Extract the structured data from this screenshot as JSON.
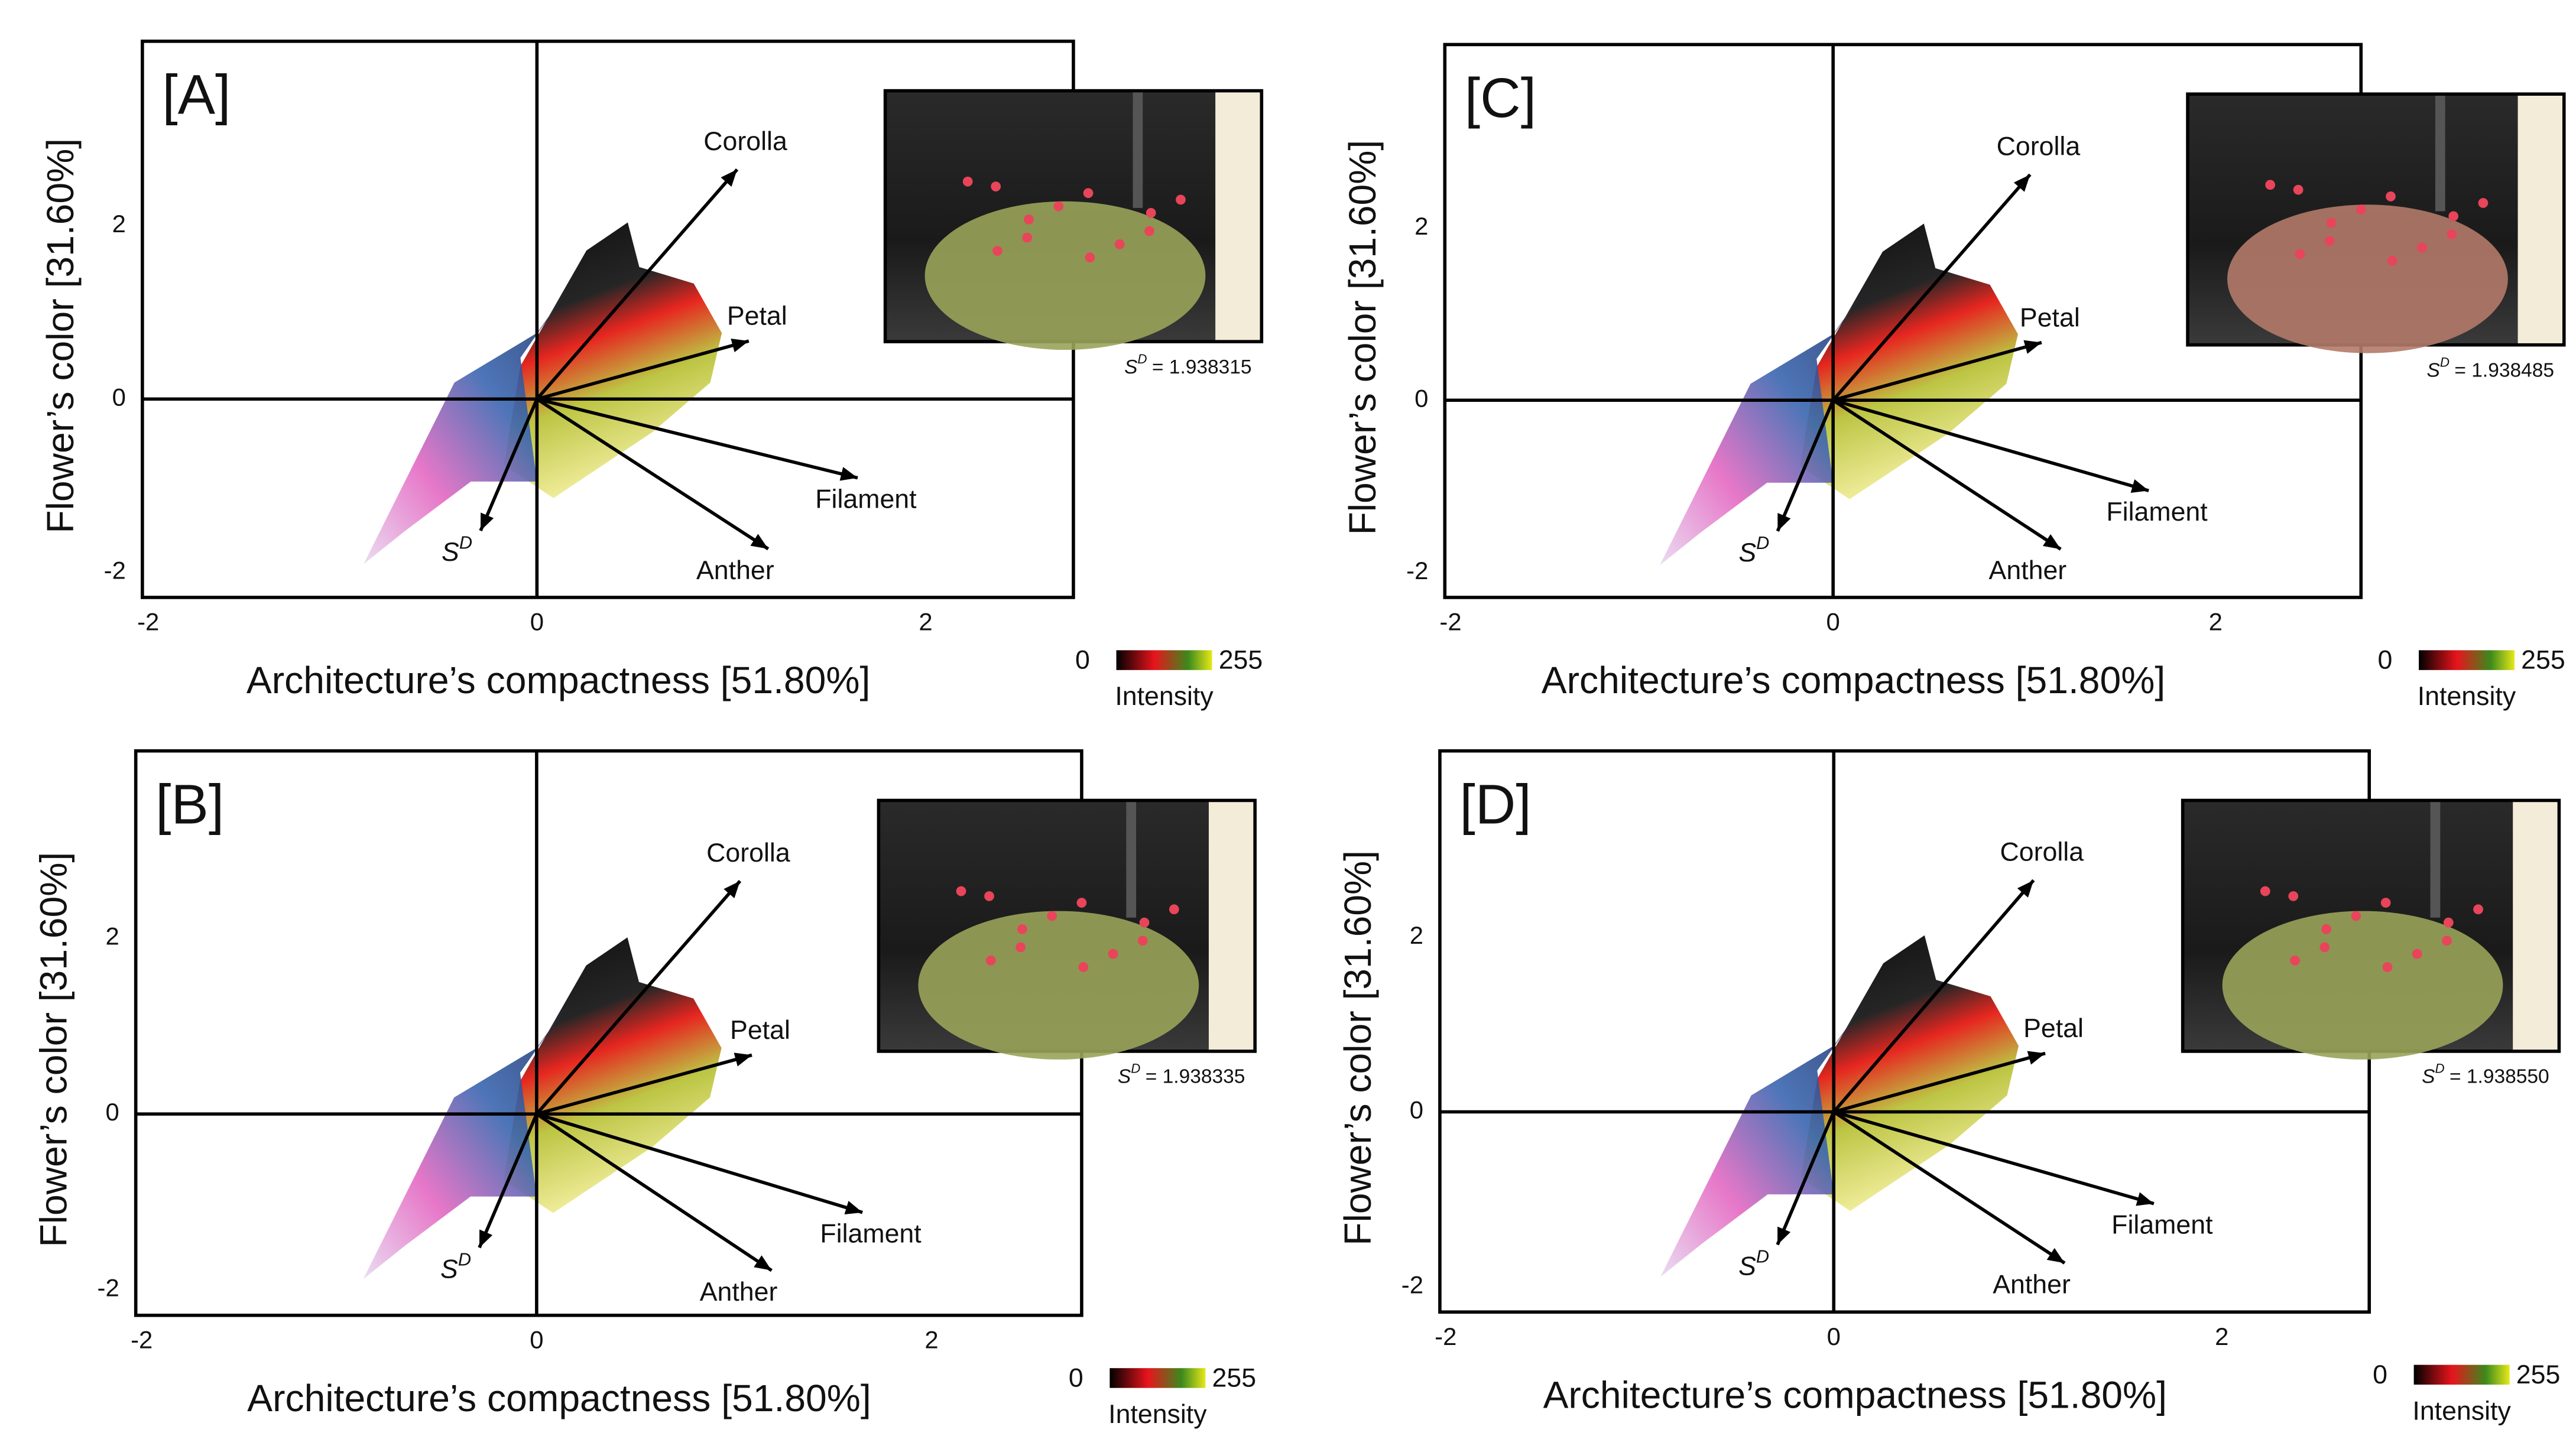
{
  "chart_data": [
    {
      "type": "biplot",
      "panel_label": "[A]",
      "xlabel": "Architecture’s compactness [51.80%]",
      "ylabel": "Flower’s color [31.60%]",
      "xlim": [
        -2.03,
        2.76
      ],
      "ylim": [
        -2.29,
        4.13
      ],
      "xticks": [
        -2,
        0,
        2
      ],
      "yticks": [
        -2,
        0,
        2
      ],
      "arrows": [
        {
          "name": "Corolla",
          "x": 1.03,
          "y": 2.65
        },
        {
          "name": "Petal",
          "x": 1.09,
          "y": 0.67
        },
        {
          "name": "Filament",
          "x": 1.65,
          "y": -0.91
        },
        {
          "name": "Anther",
          "x": 1.19,
          "y": -1.73
        },
        {
          "name": "S",
          "sup": "D",
          "x": -0.29,
          "y": -1.52
        }
      ],
      "sd_label": {
        "symbol": "S",
        "sup": "D",
        "text": "= 1.938315"
      },
      "colorbar": {
        "ticks": [
          0,
          255
        ],
        "label": "Intensity"
      }
    },
    {
      "type": "biplot",
      "panel_label": "[B]",
      "xlabel": "Architecture’s compactness [51.80%]",
      "ylabel": "Flower’s color [31.60%]",
      "xlim": [
        -2.03,
        2.76
      ],
      "ylim": [
        -2.29,
        4.13
      ],
      "xticks": [
        -2,
        0,
        2
      ],
      "yticks": [
        -2,
        0,
        2
      ],
      "arrows": [
        {
          "name": "Corolla",
          "x": 1.03,
          "y": 2.65
        },
        {
          "name": "Petal",
          "x": 1.09,
          "y": 0.67
        },
        {
          "name": "Filament",
          "x": 1.65,
          "y": -1.12
        },
        {
          "name": "Anther",
          "x": 1.19,
          "y": -1.78
        },
        {
          "name": "S",
          "sup": "D",
          "x": -0.29,
          "y": -1.52
        }
      ],
      "sd_label": {
        "symbol": "S",
        "sup": "D",
        "text": "= 1.938335"
      },
      "colorbar": {
        "ticks": [
          0,
          255
        ],
        "label": "Intensity"
      }
    },
    {
      "type": "biplot",
      "panel_label": "[C]",
      "xlabel": "Architecture’s compactness [51.80%]",
      "ylabel": "Flower’s color [31.60%]",
      "xlim": [
        -2.03,
        2.76
      ],
      "ylim": [
        -2.29,
        4.13
      ],
      "xticks": [
        -2,
        0,
        2
      ],
      "yticks": [
        -2,
        0,
        2
      ],
      "arrows": [
        {
          "name": "Corolla",
          "x": 1.03,
          "y": 2.62
        },
        {
          "name": "Petal",
          "x": 1.09,
          "y": 0.67
        },
        {
          "name": "Filament",
          "x": 1.65,
          "y": -1.05
        },
        {
          "name": "Anther",
          "x": 1.19,
          "y": -1.73
        },
        {
          "name": "S",
          "sup": "D",
          "x": -0.29,
          "y": -1.52
        }
      ],
      "sd_label": {
        "symbol": "S",
        "sup": "D",
        "text": "= 1.938485"
      },
      "colorbar": {
        "ticks": [
          0,
          255
        ],
        "label": "Intensity"
      }
    },
    {
      "type": "biplot",
      "panel_label": "[D]",
      "xlabel": "Architecture’s compactness [51.80%]",
      "ylabel": "Flower’s color [31.60%]",
      "xlim": [
        -2.03,
        2.76
      ],
      "ylim": [
        -2.29,
        4.13
      ],
      "xticks": [
        -2,
        0,
        2
      ],
      "yticks": [
        -2,
        0,
        2
      ],
      "arrows": [
        {
          "name": "Corolla",
          "x": 1.03,
          "y": 2.65
        },
        {
          "name": "Petal",
          "x": 1.09,
          "y": 0.67
        },
        {
          "name": "Filament",
          "x": 1.65,
          "y": -1.05
        },
        {
          "name": "Anther",
          "x": 1.19,
          "y": -1.73
        },
        {
          "name": "S",
          "sup": "D",
          "x": -0.29,
          "y": -1.52
        }
      ],
      "sd_label": {
        "symbol": "S",
        "sup": "D",
        "text": "= 1.938550"
      },
      "colorbar": {
        "ticks": [
          0,
          255
        ],
        "label": "Intensity"
      }
    }
  ]
}
